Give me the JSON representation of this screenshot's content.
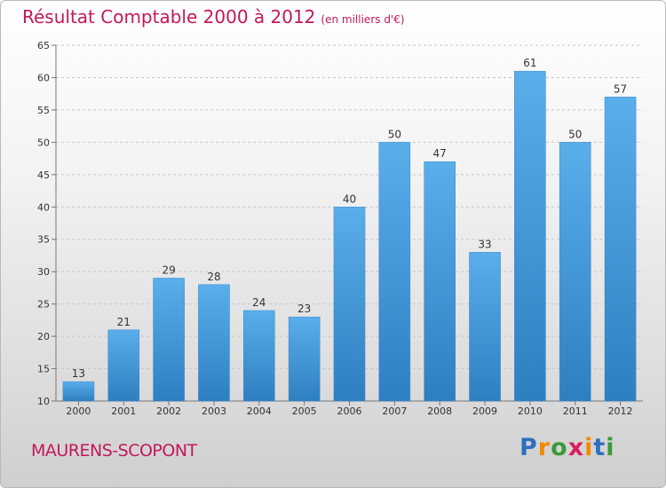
{
  "chart_data": {
    "type": "bar",
    "title": "Résultat Comptable 2000 à 2012",
    "subtitle": "(en milliers d'€)",
    "categories": [
      "2000",
      "2001",
      "2002",
      "2003",
      "2004",
      "2005",
      "2006",
      "2007",
      "2008",
      "2009",
      "2010",
      "2011",
      "2012"
    ],
    "values": [
      13,
      21,
      29,
      28,
      24,
      23,
      40,
      50,
      47,
      33,
      61,
      50,
      57
    ],
    "ylim": [
      10,
      65
    ],
    "yticks": [
      10,
      15,
      20,
      25,
      30,
      35,
      40,
      45,
      50,
      55,
      60,
      65
    ],
    "xlabel": "",
    "ylabel": "",
    "grid": "horizontal dashed",
    "legend": "none"
  },
  "location": {
    "name": "MAURENS-SCOPONT"
  },
  "brand": {
    "name": "Proxiti",
    "letters": [
      "P",
      "r",
      "o",
      "x",
      "i",
      "t",
      "i"
    ],
    "colors": [
      "#2f6fbf",
      "#f08a00",
      "#3a9a3a",
      "#d81b60",
      "#f08a00",
      "#2f6fbf",
      "#3a9a3a"
    ]
  },
  "colors": {
    "bar_top": "#5aaeea",
    "bar_bottom": "#2e7fc0",
    "title": "#c2185b"
  }
}
